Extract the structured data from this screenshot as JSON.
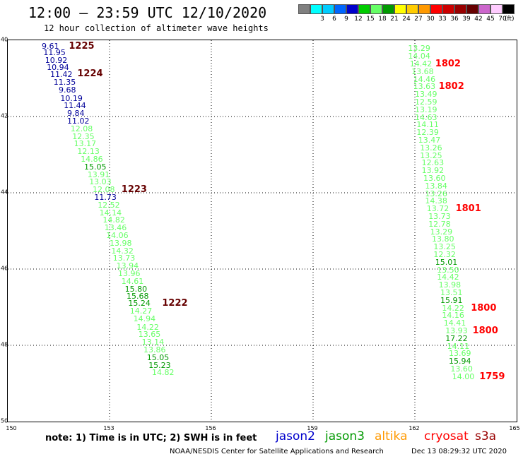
{
  "header": {
    "title": "12:00 – 23:59 UTC 12/10/2020",
    "subtitle": "12 hour collection of altimeter wave heights"
  },
  "legend": {
    "unit_label": "(ft)",
    "items": [
      {
        "label": "",
        "color": "#808080"
      },
      {
        "label": "3",
        "color": "#00ffff"
      },
      {
        "label": "6",
        "color": "#00ccff"
      },
      {
        "label": "9",
        "color": "#0066ff"
      },
      {
        "label": "12",
        "color": "#0000cc"
      },
      {
        "label": "15",
        "color": "#00cc00"
      },
      {
        "label": "18",
        "color": "#66ff66"
      },
      {
        "label": "21",
        "color": "#009900"
      },
      {
        "label": "24",
        "color": "#ffff00"
      },
      {
        "label": "27",
        "color": "#ffcc00"
      },
      {
        "label": "30",
        "color": "#ff9900"
      },
      {
        "label": "33",
        "color": "#ff0000"
      },
      {
        "label": "36",
        "color": "#cc0000"
      },
      {
        "label": "39",
        "color": "#990000"
      },
      {
        "label": "42",
        "color": "#660000"
      },
      {
        "label": "45",
        "color": "#cc66cc"
      },
      {
        "label": "70",
        "color": "#ffccff"
      },
      {
        "label": "",
        "color": "#000000"
      }
    ]
  },
  "axes": {
    "lat_labels": [
      "40",
      "42",
      "44",
      "46",
      "48",
      "50"
    ],
    "lon_labels": [
      "150",
      "153",
      "156",
      "159",
      "162",
      "165"
    ]
  },
  "chart_data": {
    "type": "scatter",
    "xlim": [
      150,
      165
    ],
    "ylim": [
      40,
      50
    ],
    "y_inverted": true,
    "grid": true,
    "tracks": [
      {
        "points": [
          {
            "lon": 151.0,
            "lat": 40.05,
            "value": "9.61",
            "color": "#000099"
          },
          {
            "lon": 151.05,
            "lat": 40.22,
            "value": "11.95",
            "color": "#000099"
          },
          {
            "lon": 151.1,
            "lat": 40.42,
            "value": "10.92",
            "color": "#000099"
          },
          {
            "lon": 151.15,
            "lat": 40.62,
            "value": "10.94",
            "color": "#000099"
          },
          {
            "lon": 151.25,
            "lat": 40.8,
            "value": "11.42",
            "color": "#000099"
          },
          {
            "lon": 151.35,
            "lat": 41.0,
            "value": "11.35",
            "color": "#000099"
          },
          {
            "lon": 151.5,
            "lat": 41.2,
            "value": "9.68",
            "color": "#000099"
          },
          {
            "lon": 151.55,
            "lat": 41.42,
            "value": "10.19",
            "color": "#000099"
          },
          {
            "lon": 151.65,
            "lat": 41.62,
            "value": "11.44",
            "color": "#000099"
          },
          {
            "lon": 151.75,
            "lat": 41.82,
            "value": "9.84",
            "color": "#000099"
          },
          {
            "lon": 151.75,
            "lat": 42.02,
            "value": "11.02",
            "color": "#000099"
          },
          {
            "lon": 151.85,
            "lat": 42.22,
            "value": "12.08",
            "color": "#66ff66"
          },
          {
            "lon": 151.9,
            "lat": 42.42,
            "value": "12.35",
            "color": "#66ff66"
          },
          {
            "lon": 151.95,
            "lat": 42.62,
            "value": "13.17",
            "color": "#66ff66"
          },
          {
            "lon": 152.05,
            "lat": 42.82,
            "value": "12.13",
            "color": "#66ff66"
          },
          {
            "lon": 152.15,
            "lat": 43.02,
            "value": "14.86",
            "color": "#66ff66"
          },
          {
            "lon": 152.25,
            "lat": 43.22,
            "value": "15.05",
            "color": "#009900"
          },
          {
            "lon": 152.35,
            "lat": 43.42,
            "value": "13.91",
            "color": "#66ff66"
          },
          {
            "lon": 152.4,
            "lat": 43.62,
            "value": "13.03",
            "color": "#66ff66"
          },
          {
            "lon": 152.5,
            "lat": 43.82,
            "value": "12.08",
            "color": "#66ff66"
          },
          {
            "lon": 152.55,
            "lat": 44.02,
            "value": "11.73",
            "color": "#000099"
          },
          {
            "lon": 152.65,
            "lat": 44.22,
            "value": "12.52",
            "color": "#66ff66"
          },
          {
            "lon": 152.7,
            "lat": 44.42,
            "value": "14.14",
            "color": "#66ff66"
          },
          {
            "lon": 152.8,
            "lat": 44.62,
            "value": "14.82",
            "color": "#66ff66"
          },
          {
            "lon": 152.85,
            "lat": 44.82,
            "value": "13.46",
            "color": "#66ff66"
          },
          {
            "lon": 152.9,
            "lat": 45.02,
            "value": "14.06",
            "color": "#66ff66"
          },
          {
            "lon": 153.0,
            "lat": 45.22,
            "value": "13.98",
            "color": "#66ff66"
          },
          {
            "lon": 153.05,
            "lat": 45.42,
            "value": "14.32",
            "color": "#66ff66"
          },
          {
            "lon": 153.1,
            "lat": 45.62,
            "value": "13.73",
            "color": "#66ff66"
          },
          {
            "lon": 153.2,
            "lat": 45.82,
            "value": "13.94",
            "color": "#66ff66"
          },
          {
            "lon": 153.25,
            "lat": 46.02,
            "value": "13.96",
            "color": "#66ff66"
          },
          {
            "lon": 153.35,
            "lat": 46.22,
            "value": "14.61",
            "color": "#66ff66"
          },
          {
            "lon": 153.45,
            "lat": 46.42,
            "value": "15.80",
            "color": "#009900"
          },
          {
            "lon": 153.5,
            "lat": 46.62,
            "value": "15.68",
            "color": "#009900"
          },
          {
            "lon": 153.55,
            "lat": 46.8,
            "value": "15.24",
            "color": "#009900"
          },
          {
            "lon": 153.6,
            "lat": 47.0,
            "value": "14.27",
            "color": "#66ff66"
          },
          {
            "lon": 153.7,
            "lat": 47.2,
            "value": "14.94",
            "color": "#66ff66"
          },
          {
            "lon": 153.8,
            "lat": 47.42,
            "value": "14.22",
            "color": "#66ff66"
          },
          {
            "lon": 153.85,
            "lat": 47.62,
            "value": "13.65",
            "color": "#66ff66"
          },
          {
            "lon": 153.95,
            "lat": 47.82,
            "value": "13.14",
            "color": "#66ff66"
          },
          {
            "lon": 154.0,
            "lat": 48.02,
            "value": "13.86",
            "color": "#66ff66"
          },
          {
            "lon": 154.1,
            "lat": 48.22,
            "value": "15.05",
            "color": "#009900"
          },
          {
            "lon": 154.15,
            "lat": 48.42,
            "value": "15.23",
            "color": "#009900"
          },
          {
            "lon": 154.25,
            "lat": 48.62,
            "value": "14.82",
            "color": "#66ff66"
          }
        ],
        "times": [
          {
            "lon": 151.8,
            "lat": 40.05,
            "label": "1225",
            "color": "#660000"
          },
          {
            "lon": 152.05,
            "lat": 40.78,
            "label": "1224",
            "color": "#660000"
          },
          {
            "lon": 153.35,
            "lat": 43.82,
            "label": "1223",
            "color": "#660000"
          },
          {
            "lon": 154.55,
            "lat": 46.8,
            "label": "1222",
            "color": "#660000"
          }
        ]
      },
      {
        "points": [
          {
            "lon": 161.8,
            "lat": 40.12,
            "value": "13.29",
            "color": "#66ff66"
          },
          {
            "lon": 161.8,
            "lat": 40.32,
            "value": "14.04",
            "color": "#66ff66"
          },
          {
            "lon": 161.85,
            "lat": 40.52,
            "value": "14.42",
            "color": "#66ff66"
          },
          {
            "lon": 161.9,
            "lat": 40.72,
            "value": "13.68",
            "color": "#66ff66"
          },
          {
            "lon": 161.95,
            "lat": 40.92,
            "value": "14.46",
            "color": "#66ff66"
          },
          {
            "lon": 161.95,
            "lat": 41.12,
            "value": "13.63",
            "color": "#66ff66"
          },
          {
            "lon": 162.0,
            "lat": 41.32,
            "value": "13.49",
            "color": "#66ff66"
          },
          {
            "lon": 162.0,
            "lat": 41.52,
            "value": "12.59",
            "color": "#66ff66"
          },
          {
            "lon": 162.0,
            "lat": 41.72,
            "value": "13.19",
            "color": "#66ff66"
          },
          {
            "lon": 162.0,
            "lat": 41.92,
            "value": "14.63",
            "color": "#66ff66"
          },
          {
            "lon": 162.05,
            "lat": 42.12,
            "value": "14.11",
            "color": "#66ff66"
          },
          {
            "lon": 162.05,
            "lat": 42.32,
            "value": "12.39",
            "color": "#66ff66"
          },
          {
            "lon": 162.1,
            "lat": 42.52,
            "value": "13.47",
            "color": "#66ff66"
          },
          {
            "lon": 162.15,
            "lat": 42.72,
            "value": "13.26",
            "color": "#66ff66"
          },
          {
            "lon": 162.15,
            "lat": 42.92,
            "value": "13.25",
            "color": "#66ff66"
          },
          {
            "lon": 162.2,
            "lat": 43.12,
            "value": "12.63",
            "color": "#66ff66"
          },
          {
            "lon": 162.2,
            "lat": 43.32,
            "value": "13.92",
            "color": "#66ff66"
          },
          {
            "lon": 162.25,
            "lat": 43.52,
            "value": "13.60",
            "color": "#66ff66"
          },
          {
            "lon": 162.3,
            "lat": 43.72,
            "value": "13.84",
            "color": "#66ff66"
          },
          {
            "lon": 162.3,
            "lat": 43.92,
            "value": "13.26",
            "color": "#66ff66"
          },
          {
            "lon": 162.3,
            "lat": 44.12,
            "value": "14.38",
            "color": "#66ff66"
          },
          {
            "lon": 162.35,
            "lat": 44.32,
            "value": "13.72",
            "color": "#66ff66"
          },
          {
            "lon": 162.4,
            "lat": 44.52,
            "value": "13.73",
            "color": "#66ff66"
          },
          {
            "lon": 162.4,
            "lat": 44.72,
            "value": "12.78",
            "color": "#66ff66"
          },
          {
            "lon": 162.45,
            "lat": 44.92,
            "value": "13.29",
            "color": "#66ff66"
          },
          {
            "lon": 162.5,
            "lat": 45.12,
            "value": "13.80",
            "color": "#66ff66"
          },
          {
            "lon": 162.55,
            "lat": 45.32,
            "value": "13.25",
            "color": "#66ff66"
          },
          {
            "lon": 162.55,
            "lat": 45.52,
            "value": "12.32",
            "color": "#66ff66"
          },
          {
            "lon": 162.6,
            "lat": 45.72,
            "value": "15.01",
            "color": "#009900"
          },
          {
            "lon": 162.65,
            "lat": 45.92,
            "value": "13.50",
            "color": "#66ff66"
          },
          {
            "lon": 162.65,
            "lat": 46.12,
            "value": "14.42",
            "color": "#66ff66"
          },
          {
            "lon": 162.7,
            "lat": 46.32,
            "value": "13.98",
            "color": "#66ff66"
          },
          {
            "lon": 162.75,
            "lat": 46.52,
            "value": "13.51",
            "color": "#66ff66"
          },
          {
            "lon": 162.75,
            "lat": 46.72,
            "value": "15.91",
            "color": "#009900"
          },
          {
            "lon": 162.8,
            "lat": 46.92,
            "value": "14.22",
            "color": "#66ff66"
          },
          {
            "lon": 162.8,
            "lat": 47.12,
            "value": "14.16",
            "color": "#66ff66"
          },
          {
            "lon": 162.85,
            "lat": 47.32,
            "value": "14.41",
            "color": "#66ff66"
          },
          {
            "lon": 162.9,
            "lat": 47.52,
            "value": "13.93",
            "color": "#66ff66"
          },
          {
            "lon": 162.9,
            "lat": 47.72,
            "value": "17.22",
            "color": "#009900"
          },
          {
            "lon": 162.95,
            "lat": 47.92,
            "value": "14.11",
            "color": "#66ff66"
          },
          {
            "lon": 163.0,
            "lat": 48.12,
            "value": "13.69",
            "color": "#66ff66"
          },
          {
            "lon": 163.0,
            "lat": 48.32,
            "value": "15.94",
            "color": "#009900"
          },
          {
            "lon": 163.05,
            "lat": 48.52,
            "value": "13.60",
            "color": "#66ff66"
          },
          {
            "lon": 163.1,
            "lat": 48.72,
            "value": "14.00",
            "color": "#66ff66"
          }
        ],
        "times": [
          {
            "lon": 162.6,
            "lat": 40.52,
            "label": "1802",
            "color": "#ff0000"
          },
          {
            "lon": 162.7,
            "lat": 41.12,
            "label": "1802",
            "color": "#ff0000"
          },
          {
            "lon": 163.2,
            "lat": 44.32,
            "label": "1801",
            "color": "#ff0000"
          },
          {
            "lon": 163.65,
            "lat": 46.92,
            "label": "1800",
            "color": "#ff0000"
          },
          {
            "lon": 163.7,
            "lat": 47.52,
            "label": "1800",
            "color": "#ff0000"
          },
          {
            "lon": 163.9,
            "lat": 48.72,
            "label": "1759",
            "color": "#ff0000"
          }
        ]
      }
    ]
  },
  "footer": {
    "note": "note: 1) Time is in UTC; 2) SWH is in feet",
    "satellites": [
      {
        "name": "jason2",
        "color": "#0000cc"
      },
      {
        "name": "jason3",
        "color": "#009900"
      },
      {
        "name": "altika",
        "color": "#ff9900"
      },
      {
        "name": "cryosat",
        "color": "#ff0000"
      },
      {
        "name": "s3a",
        "color": "#990000"
      }
    ],
    "credit": "NOAA/NESDIS Center for Satellite Applications and Research",
    "timestamp": "Dec 13 08:29:32 UTC 2020"
  }
}
